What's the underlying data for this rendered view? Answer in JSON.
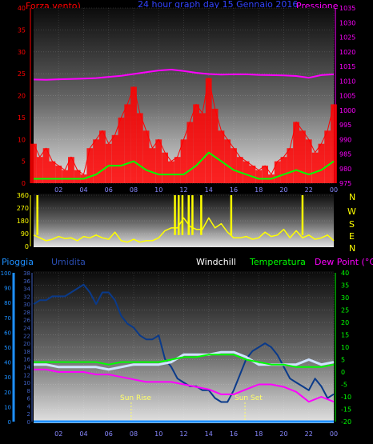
{
  "header": {
    "left_title": "Forza vento)",
    "center_title": "24 hour graph day  15 Gennaio 2016",
    "right_title": "Pressione"
  },
  "colors": {
    "wind": "#ff0000",
    "wind_avg": "#00ff00",
    "pressure": "#ff00ff",
    "direction": "#ffff00",
    "humidity": "#0a3a8a",
    "windchill": "#cfe3ff",
    "temperature": "#00ff00",
    "dewpoint": "#ff00ff",
    "rain": "#1e90ff",
    "left_axis": "#ff0000",
    "right_axis": "#ff00ff",
    "rain_axis": "#1e90ff",
    "hum_axis": "#4060c0",
    "temp_axis": "#00ff00",
    "dir_axis": "#ffff00",
    "bg": "#000000",
    "grid": "#ffffff"
  },
  "chart_data": [
    {
      "type": "line",
      "title": "24 hour graph day  15 Gennaio 2016",
      "xlim": [
        0,
        24
      ],
      "x_ticks": [
        "02",
        "04",
        "06",
        "08",
        "10",
        "12",
        "14",
        "16",
        "18",
        "20",
        "22",
        "00"
      ],
      "x_tick_values": [
        2,
        4,
        6,
        8,
        10,
        12,
        14,
        16,
        18,
        20,
        22,
        24
      ],
      "left_axis": {
        "label": "Forza vento)",
        "ylim": [
          0,
          40
        ],
        "ticks": [
          0,
          5,
          10,
          15,
          20,
          25,
          30,
          35,
          40
        ]
      },
      "right_axis": {
        "label": "Pressione",
        "ylim": [
          975,
          1035
        ],
        "ticks": [
          975,
          980,
          985,
          990,
          995,
          1000,
          1005,
          1010,
          1015,
          1020,
          1025,
          1030,
          1035
        ]
      },
      "series": [
        {
          "name": "Forza vento)",
          "axis": "left",
          "x": [
            0,
            0.5,
            1,
            1.5,
            2,
            2.5,
            3,
            3.5,
            4,
            4.5,
            5,
            5.5,
            6,
            6.5,
            7,
            7.5,
            8,
            8.5,
            9,
            9.5,
            10,
            10.5,
            11,
            11.5,
            12,
            12.5,
            13,
            13.5,
            14,
            14.5,
            15,
            15.5,
            16,
            16.5,
            17,
            17.5,
            18,
            18.5,
            19,
            19.5,
            20,
            20.5,
            21,
            21.5,
            22,
            22.5,
            23,
            23.5,
            24
          ],
          "y": [
            9,
            6,
            8,
            5,
            4,
            3,
            6,
            3,
            2,
            8,
            10,
            12,
            9,
            11,
            15,
            18,
            22,
            16,
            12,
            8,
            10,
            7,
            5,
            6,
            10,
            14,
            18,
            16,
            24,
            17,
            12,
            10,
            8,
            6,
            5,
            4,
            3,
            4,
            2,
            5,
            6,
            8,
            14,
            12,
            10,
            7,
            9,
            12,
            18
          ]
        },
        {
          "name": "Forza vento) avg",
          "axis": "left",
          "x": [
            0,
            1,
            2,
            3,
            4,
            5,
            6,
            7,
            8,
            9,
            10,
            11,
            12,
            13,
            14,
            15,
            16,
            17,
            18,
            19,
            20,
            21,
            22,
            23,
            24
          ],
          "y": [
            1,
            1,
            1,
            1,
            1,
            2,
            4,
            4,
            5,
            3,
            2,
            2,
            2,
            4,
            7,
            5,
            3,
            2,
            1,
            1,
            2,
            3,
            2,
            3,
            5
          ]
        },
        {
          "name": "Pressione",
          "axis": "right",
          "x": [
            0,
            1,
            2,
            3,
            4,
            5,
            6,
            7,
            8,
            9,
            10,
            11,
            12,
            13,
            14,
            15,
            16,
            17,
            18,
            19,
            20,
            21,
            22,
            23,
            24
          ],
          "y": [
            1010.5,
            1010.4,
            1010.6,
            1010.7,
            1010.8,
            1011,
            1011.4,
            1011.8,
            1012.4,
            1013,
            1013.6,
            1013.9,
            1013.4,
            1012.8,
            1012.4,
            1012.2,
            1012.3,
            1012.3,
            1012.1,
            1012,
            1011.9,
            1011.7,
            1011.1,
            1012,
            1012.3
          ]
        }
      ]
    },
    {
      "type": "line",
      "xlim": [
        0,
        24
      ],
      "x_ticks": [
        "02",
        "04",
        "06",
        "08",
        "10",
        "12",
        "14",
        "16",
        "18",
        "20",
        "22",
        "00"
      ],
      "left_axis": {
        "ylim": [
          0,
          360
        ],
        "ticks": [
          0,
          90,
          180,
          270,
          360
        ]
      },
      "compass_labels": [
        "N",
        "W",
        "S",
        "E",
        "N"
      ],
      "series": [
        {
          "name": "direction",
          "x": [
            0,
            0.5,
            1,
            1.5,
            2,
            2.5,
            3,
            3.5,
            4,
            4.5,
            5,
            5.5,
            6,
            6.5,
            7,
            7.5,
            8,
            8.5,
            9,
            9.5,
            10,
            10.5,
            11,
            11.5,
            12,
            12.5,
            13,
            13.5,
            14,
            14.5,
            15,
            15.5,
            16,
            16.5,
            17,
            17.5,
            18,
            18.5,
            19,
            19.5,
            20,
            20.5,
            21,
            21.5,
            22,
            22.5,
            23,
            23.5,
            24
          ],
          "y": [
            80,
            60,
            40,
            50,
            70,
            55,
            60,
            40,
            70,
            60,
            80,
            60,
            50,
            100,
            40,
            30,
            50,
            30,
            40,
            40,
            60,
            110,
            130,
            130,
            200,
            140,
            120,
            120,
            200,
            130,
            160,
            100,
            60,
            60,
            70,
            50,
            60,
            100,
            70,
            80,
            120,
            60,
            110,
            60,
            80,
            50,
            60,
            80,
            40
          ]
        }
      ]
    },
    {
      "type": "line",
      "xlim": [
        0,
        24
      ],
      "x_ticks": [
        "02",
        "04",
        "06",
        "08",
        "10",
        "12",
        "14",
        "16",
        "18",
        "20",
        "22",
        "00"
      ],
      "legend": [
        "Pioggia",
        "Umidita",
        "Windchill",
        "Temperatura",
        "Dew Point (°C)"
      ],
      "rain_axis": {
        "label": "Pioggia",
        "ylim": [
          0,
          100
        ],
        "ticks": [
          0,
          10,
          20,
          30,
          40,
          50,
          60,
          70,
          80,
          90,
          100
        ]
      },
      "hum_axis": {
        "label": "Umidita",
        "ylim": [
          0,
          38
        ],
        "ticks": [
          0,
          2,
          4,
          6,
          8,
          10,
          12,
          14,
          16,
          18,
          20,
          22,
          24,
          26,
          28,
          30,
          32,
          34,
          36,
          38
        ]
      },
      "temp_axis": {
        "label": "Dew Point (°C)",
        "ylim": [
          -20,
          40
        ],
        "ticks": [
          -20,
          -15,
          -10,
          -5,
          0,
          5,
          10,
          15,
          20,
          25,
          30,
          35,
          40
        ]
      },
      "annotations": [
        {
          "text": "Sun Rise",
          "x": 7.8
        },
        {
          "text": "Sun Set",
          "x": 16.9
        }
      ],
      "series": [
        {
          "name": "Umidita",
          "axis": "hum",
          "x": [
            0,
            0.5,
            1,
            1.5,
            2,
            2.5,
            3,
            3.5,
            4,
            4.5,
            5,
            5.5,
            6,
            6.5,
            7,
            7.5,
            8,
            8.5,
            9,
            9.5,
            10,
            10.5,
            11,
            11.5,
            12,
            12.5,
            13,
            13.5,
            14,
            14.5,
            15,
            15.5,
            16,
            16.5,
            17,
            17.5,
            18,
            18.5,
            19,
            19.5,
            20,
            20.5,
            21,
            21.5,
            22,
            22.5,
            23,
            23.5,
            24
          ],
          "y": [
            30,
            31,
            31,
            32,
            32,
            32,
            33,
            34,
            35,
            33,
            30,
            33,
            33,
            31,
            27,
            25,
            24,
            22,
            21,
            21,
            22,
            16,
            14,
            11,
            10,
            9,
            9,
            8,
            8,
            6,
            5,
            5,
            8,
            12,
            16,
            18,
            19,
            20,
            19,
            17,
            14,
            11,
            10,
            9,
            8,
            11,
            9,
            6,
            7
          ]
        },
        {
          "name": "Windchill",
          "axis": "temp",
          "x": [
            0,
            1,
            2,
            3,
            4,
            5,
            6,
            7,
            8,
            9,
            10,
            11,
            12,
            13,
            14,
            15,
            16,
            17,
            18,
            19,
            20,
            21,
            22,
            23,
            24
          ],
          "y": [
            3,
            3,
            2,
            2,
            2,
            2,
            1,
            2,
            3,
            3,
            3,
            4,
            7,
            7,
            7,
            8,
            8,
            6,
            3,
            3,
            3,
            3,
            5,
            3,
            4
          ]
        },
        {
          "name": "Temperatura",
          "axis": "temp",
          "x": [
            0,
            1,
            2,
            3,
            4,
            5,
            6,
            7,
            8,
            9,
            10,
            11,
            12,
            13,
            14,
            15,
            16,
            17,
            18,
            19,
            20,
            21,
            22,
            23,
            24
          ],
          "y": [
            4,
            4,
            4,
            4,
            4,
            4,
            3,
            4,
            4,
            4,
            4,
            5,
            6,
            6,
            7,
            7,
            7,
            5,
            4,
            3,
            3,
            2,
            2,
            2,
            3
          ]
        },
        {
          "name": "Dew Point (°C)",
          "axis": "temp",
          "x": [
            0,
            1,
            2,
            3,
            4,
            5,
            6,
            7,
            8,
            9,
            10,
            11,
            12,
            13,
            14,
            15,
            16,
            17,
            18,
            19,
            20,
            21,
            22,
            23,
            24
          ],
          "y": [
            1,
            1,
            0,
            0,
            0,
            -1,
            -1,
            -2,
            -3,
            -4,
            -4,
            -4,
            -5,
            -6,
            -7,
            -9,
            -9,
            -7,
            -5,
            -5,
            -6,
            -8,
            -12,
            -10,
            -12
          ]
        },
        {
          "name": "Pioggia",
          "axis": "rain",
          "x": [
            0,
            24
          ],
          "y": [
            0,
            0
          ]
        }
      ]
    }
  ]
}
